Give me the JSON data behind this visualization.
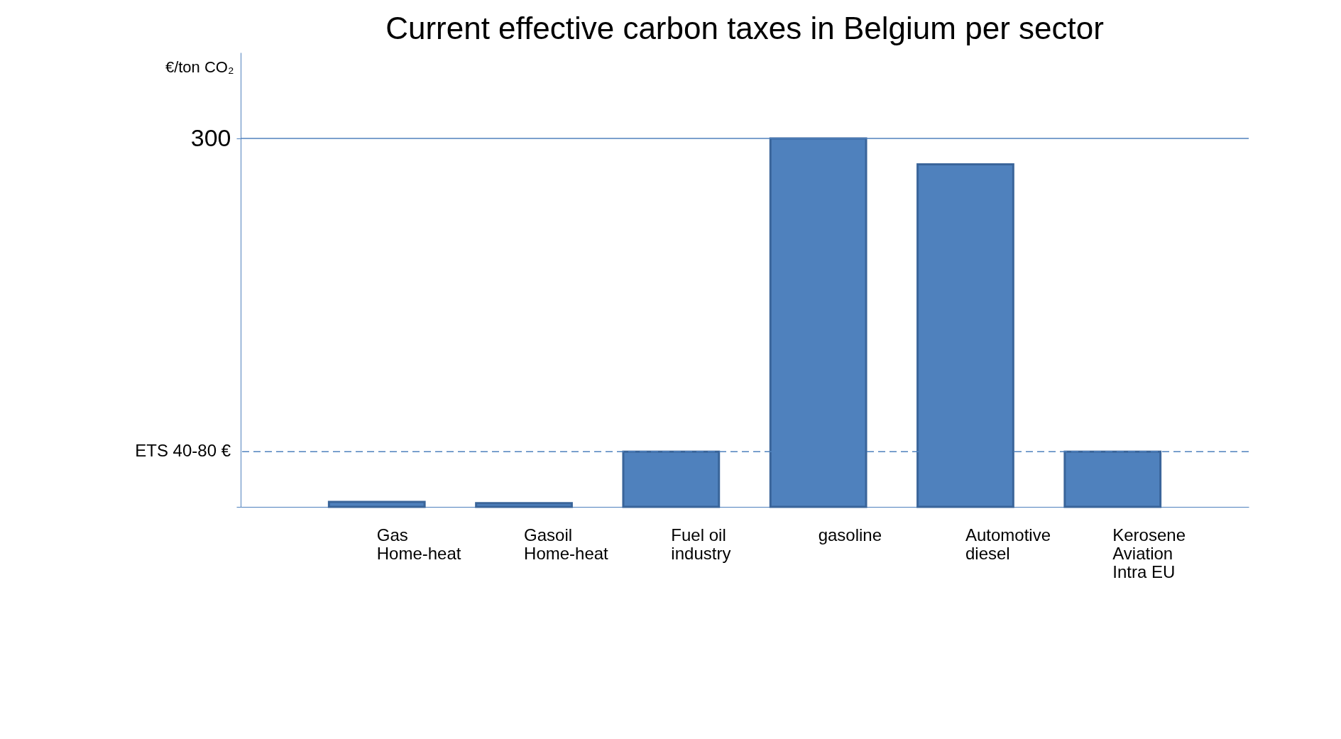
{
  "chart_data": {
    "type": "bar",
    "title": "Current effective carbon taxes in Belgium per sector",
    "ylabel": "€/ton CO₂",
    "categories": [
      "Gas\nHome-heat",
      "Gasoil\nHome-heat",
      "Fuel oil\nindustry",
      "gasoline",
      "Automotive\ndiesel",
      "Kerosene\nAviation\nIntra EU"
    ],
    "values": [
      4,
      3,
      45,
      300,
      279,
      45
    ],
    "color": "#4f81bd",
    "ylim": [
      0,
      370
    ],
    "yticks": [
      {
        "value": 0,
        "label": null
      },
      300
    ],
    "ref_lines": [
      {
        "axis": "y",
        "value": 300,
        "color": "#4f81bd",
        "line_style": "solid"
      },
      {
        "axis": "y",
        "value": 45,
        "label": "ETS 40-80 €",
        "color": "#4f81bd",
        "line_style": "dashed"
      }
    ],
    "grid": false
  }
}
